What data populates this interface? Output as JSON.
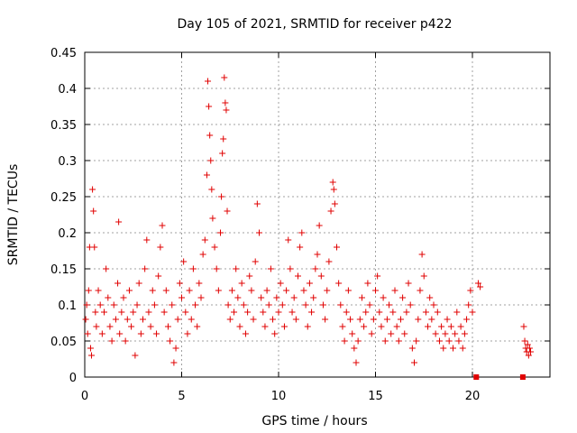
{
  "chart_data": {
    "type": "scatter",
    "title": "Day 105 of 2021, SRMTID for receiver p422",
    "xlabel": "GPS time / hours",
    "ylabel": "SRMTID / TECUs",
    "xlim": [
      0,
      24
    ],
    "ylim": [
      0,
      0.45
    ],
    "xticks": [
      "0",
      "5",
      "10",
      "15",
      "20"
    ],
    "yticks": [
      "0",
      "0.05",
      "0.1",
      "0.15",
      "0.2",
      "0.25",
      "0.3",
      "0.35",
      "0.4",
      "0.45"
    ],
    "grid": true,
    "marker": "plus",
    "color": "#e00000",
    "series": [
      {
        "name": "SRMTID",
        "points": [
          [
            0.05,
            0.08
          ],
          [
            0.1,
            0.1
          ],
          [
            0.15,
            0.06
          ],
          [
            0.2,
            0.12
          ],
          [
            0.25,
            0.18
          ],
          [
            0.3,
            0.04
          ],
          [
            0.35,
            0.03
          ],
          [
            0.4,
            0.26
          ],
          [
            0.45,
            0.23
          ],
          [
            0.5,
            0.18
          ],
          [
            0.55,
            0.09
          ],
          [
            0.6,
            0.07
          ],
          [
            0.7,
            0.12
          ],
          [
            0.8,
            0.1
          ],
          [
            0.9,
            0.06
          ],
          [
            1.0,
            0.09
          ],
          [
            1.1,
            0.15
          ],
          [
            1.2,
            0.11
          ],
          [
            1.3,
            0.07
          ],
          [
            1.4,
            0.05
          ],
          [
            1.5,
            0.1
          ],
          [
            1.6,
            0.08
          ],
          [
            1.7,
            0.13
          ],
          [
            1.75,
            0.215
          ],
          [
            1.8,
            0.06
          ],
          [
            1.9,
            0.09
          ],
          [
            2.0,
            0.11
          ],
          [
            2.1,
            0.05
          ],
          [
            2.2,
            0.08
          ],
          [
            2.3,
            0.12
          ],
          [
            2.4,
            0.07
          ],
          [
            2.5,
            0.09
          ],
          [
            2.6,
            0.03
          ],
          [
            2.7,
            0.1
          ],
          [
            2.8,
            0.13
          ],
          [
            2.9,
            0.06
          ],
          [
            3.0,
            0.08
          ],
          [
            3.1,
            0.15
          ],
          [
            3.2,
            0.19
          ],
          [
            3.3,
            0.09
          ],
          [
            3.4,
            0.07
          ],
          [
            3.5,
            0.12
          ],
          [
            3.6,
            0.1
          ],
          [
            3.7,
            0.06
          ],
          [
            3.8,
            0.14
          ],
          [
            3.9,
            0.18
          ],
          [
            4.0,
            0.21
          ],
          [
            4.1,
            0.09
          ],
          [
            4.2,
            0.12
          ],
          [
            4.3,
            0.07
          ],
          [
            4.4,
            0.05
          ],
          [
            4.5,
            0.1
          ],
          [
            4.6,
            0.02
          ],
          [
            4.7,
            0.04
          ],
          [
            4.8,
            0.08
          ],
          [
            4.9,
            0.13
          ],
          [
            5.0,
            0.11
          ],
          [
            5.1,
            0.16
          ],
          [
            5.2,
            0.09
          ],
          [
            5.3,
            0.06
          ],
          [
            5.4,
            0.12
          ],
          [
            5.5,
            0.08
          ],
          [
            5.6,
            0.15
          ],
          [
            5.7,
            0.1
          ],
          [
            5.8,
            0.07
          ],
          [
            5.9,
            0.13
          ],
          [
            6.0,
            0.11
          ],
          [
            6.1,
            0.17
          ],
          [
            6.2,
            0.19
          ],
          [
            6.3,
            0.28
          ],
          [
            6.35,
            0.41
          ],
          [
            6.4,
            0.375
          ],
          [
            6.45,
            0.335
          ],
          [
            6.5,
            0.3
          ],
          [
            6.55,
            0.26
          ],
          [
            6.6,
            0.22
          ],
          [
            6.7,
            0.18
          ],
          [
            6.8,
            0.15
          ],
          [
            6.9,
            0.12
          ],
          [
            7.0,
            0.2
          ],
          [
            7.05,
            0.25
          ],
          [
            7.1,
            0.31
          ],
          [
            7.15,
            0.33
          ],
          [
            7.2,
            0.415
          ],
          [
            7.25,
            0.38
          ],
          [
            7.3,
            0.37
          ],
          [
            7.35,
            0.23
          ],
          [
            7.4,
            0.1
          ],
          [
            7.5,
            0.08
          ],
          [
            7.6,
            0.12
          ],
          [
            7.7,
            0.09
          ],
          [
            7.8,
            0.15
          ],
          [
            7.9,
            0.11
          ],
          [
            8.0,
            0.07
          ],
          [
            8.1,
            0.13
          ],
          [
            8.2,
            0.1
          ],
          [
            8.3,
            0.06
          ],
          [
            8.4,
            0.09
          ],
          [
            8.5,
            0.14
          ],
          [
            8.6,
            0.12
          ],
          [
            8.7,
            0.08
          ],
          [
            8.8,
            0.16
          ],
          [
            8.9,
            0.24
          ],
          [
            9.0,
            0.2
          ],
          [
            9.1,
            0.11
          ],
          [
            9.2,
            0.09
          ],
          [
            9.3,
            0.07
          ],
          [
            9.4,
            0.12
          ],
          [
            9.5,
            0.1
          ],
          [
            9.6,
            0.15
          ],
          [
            9.7,
            0.08
          ],
          [
            9.8,
            0.06
          ],
          [
            9.9,
            0.11
          ],
          [
            10.0,
            0.09
          ],
          [
            10.1,
            0.13
          ],
          [
            10.2,
            0.1
          ],
          [
            10.3,
            0.07
          ],
          [
            10.4,
            0.12
          ],
          [
            10.5,
            0.19
          ],
          [
            10.6,
            0.15
          ],
          [
            10.7,
            0.09
          ],
          [
            10.8,
            0.11
          ],
          [
            10.9,
            0.08
          ],
          [
            11.0,
            0.14
          ],
          [
            11.1,
            0.18
          ],
          [
            11.2,
            0.2
          ],
          [
            11.3,
            0.12
          ],
          [
            11.4,
            0.1
          ],
          [
            11.5,
            0.07
          ],
          [
            11.6,
            0.13
          ],
          [
            11.7,
            0.09
          ],
          [
            11.8,
            0.11
          ],
          [
            11.9,
            0.15
          ],
          [
            12.0,
            0.17
          ],
          [
            12.1,
            0.21
          ],
          [
            12.2,
            0.14
          ],
          [
            12.3,
            0.1
          ],
          [
            12.4,
            0.08
          ],
          [
            12.5,
            0.12
          ],
          [
            12.6,
            0.16
          ],
          [
            12.7,
            0.23
          ],
          [
            12.8,
            0.27
          ],
          [
            12.85,
            0.26
          ],
          [
            12.9,
            0.24
          ],
          [
            13.0,
            0.18
          ],
          [
            13.1,
            0.13
          ],
          [
            13.2,
            0.1
          ],
          [
            13.3,
            0.07
          ],
          [
            13.4,
            0.05
          ],
          [
            13.5,
            0.09
          ],
          [
            13.6,
            0.12
          ],
          [
            13.7,
            0.08
          ],
          [
            13.8,
            0.06
          ],
          [
            13.9,
            0.04
          ],
          [
            14.0,
            0.02
          ],
          [
            14.1,
            0.05
          ],
          [
            14.2,
            0.08
          ],
          [
            14.3,
            0.11
          ],
          [
            14.4,
            0.07
          ],
          [
            14.5,
            0.09
          ],
          [
            14.6,
            0.13
          ],
          [
            14.7,
            0.1
          ],
          [
            14.8,
            0.06
          ],
          [
            14.9,
            0.08
          ],
          [
            15.0,
            0.12
          ],
          [
            15.1,
            0.14
          ],
          [
            15.2,
            0.09
          ],
          [
            15.3,
            0.07
          ],
          [
            15.4,
            0.11
          ],
          [
            15.5,
            0.05
          ],
          [
            15.6,
            0.08
          ],
          [
            15.7,
            0.1
          ],
          [
            15.8,
            0.06
          ],
          [
            15.9,
            0.09
          ],
          [
            16.0,
            0.12
          ],
          [
            16.1,
            0.07
          ],
          [
            16.2,
            0.05
          ],
          [
            16.3,
            0.08
          ],
          [
            16.4,
            0.11
          ],
          [
            16.5,
            0.06
          ],
          [
            16.6,
            0.09
          ],
          [
            16.7,
            0.13
          ],
          [
            16.8,
            0.1
          ],
          [
            16.9,
            0.04
          ],
          [
            17.0,
            0.02
          ],
          [
            17.1,
            0.05
          ],
          [
            17.2,
            0.08
          ],
          [
            17.3,
            0.12
          ],
          [
            17.4,
            0.17
          ],
          [
            17.5,
            0.14
          ],
          [
            17.6,
            0.09
          ],
          [
            17.7,
            0.07
          ],
          [
            17.8,
            0.11
          ],
          [
            17.9,
            0.08
          ],
          [
            18.0,
            0.1
          ],
          [
            18.1,
            0.06
          ],
          [
            18.2,
            0.09
          ],
          [
            18.3,
            0.05
          ],
          [
            18.4,
            0.07
          ],
          [
            18.5,
            0.04
          ],
          [
            18.6,
            0.06
          ],
          [
            18.7,
            0.08
          ],
          [
            18.8,
            0.05
          ],
          [
            18.9,
            0.07
          ],
          [
            19.0,
            0.04
          ],
          [
            19.1,
            0.06
          ],
          [
            19.2,
            0.09
          ],
          [
            19.3,
            0.05
          ],
          [
            19.4,
            0.07
          ],
          [
            19.5,
            0.04
          ],
          [
            19.6,
            0.06
          ],
          [
            19.7,
            0.08
          ],
          [
            19.8,
            0.1
          ],
          [
            19.9,
            0.12
          ],
          [
            20.0,
            0.09
          ],
          [
            20.3,
            0.13
          ],
          [
            20.4,
            0.125
          ],
          [
            22.65,
            0.07
          ],
          [
            22.7,
            0.05
          ],
          [
            22.75,
            0.04
          ],
          [
            22.8,
            0.035
          ],
          [
            22.85,
            0.045
          ],
          [
            22.9,
            0.03
          ],
          [
            22.95,
            0.04
          ],
          [
            23.0,
            0.035
          ]
        ]
      }
    ],
    "zero_markers": [
      [
        20.2,
        0.0
      ],
      [
        22.6,
        0.0
      ]
    ]
  }
}
